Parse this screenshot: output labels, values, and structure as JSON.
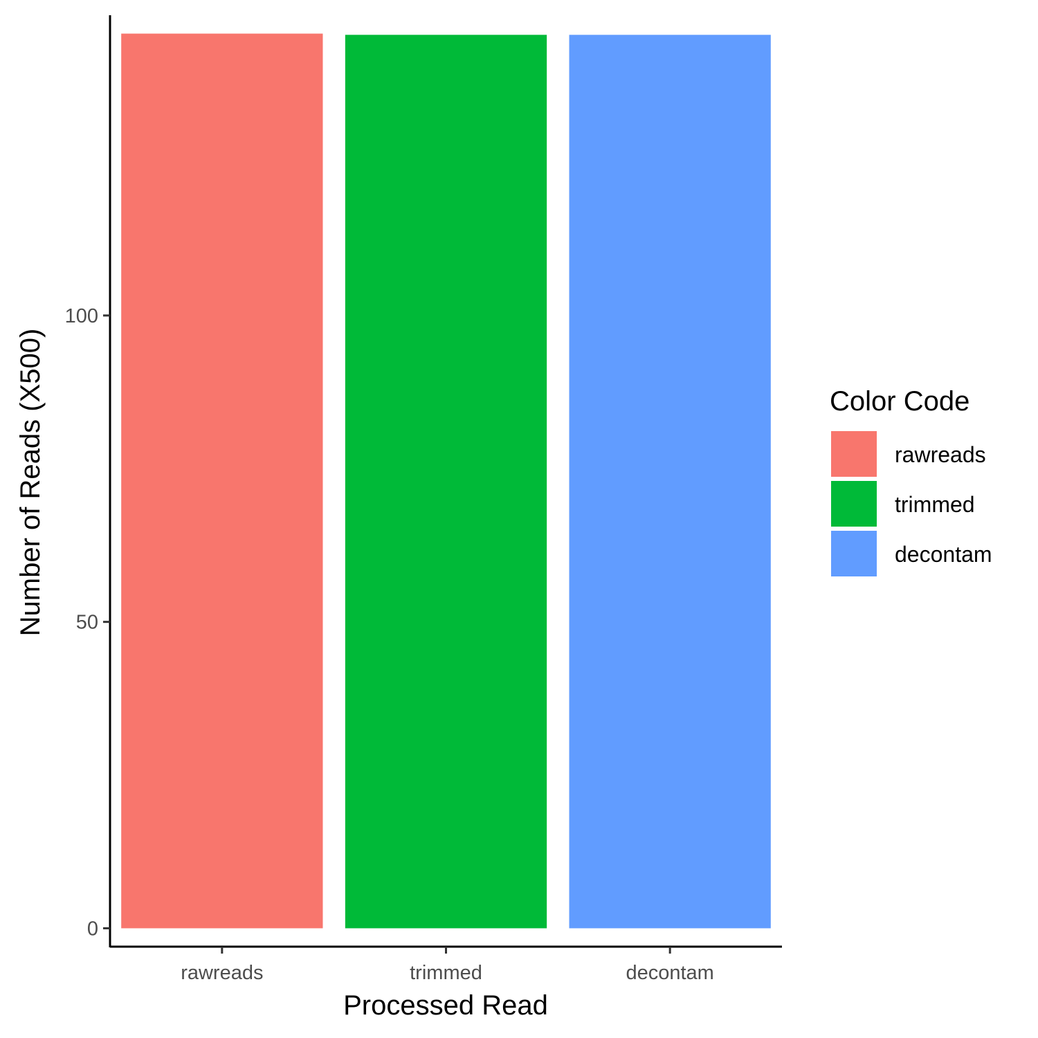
{
  "chart_data": {
    "type": "bar",
    "categories": [
      "rawreads",
      "trimmed",
      "decontam"
    ],
    "values": [
      146,
      145.8,
      145.8
    ],
    "colors": [
      "#F8766D",
      "#00BA38",
      "#619CFF"
    ],
    "xlabel": "Processed Read",
    "ylabel": "Number of Reads (X500)",
    "yticks": [
      0,
      50,
      100
    ],
    "ylim": [
      -3,
      149
    ],
    "legend": {
      "title": "Color Code",
      "position": "right",
      "entries": [
        "rawreads",
        "trimmed",
        "decontam"
      ]
    },
    "grid": false
  }
}
